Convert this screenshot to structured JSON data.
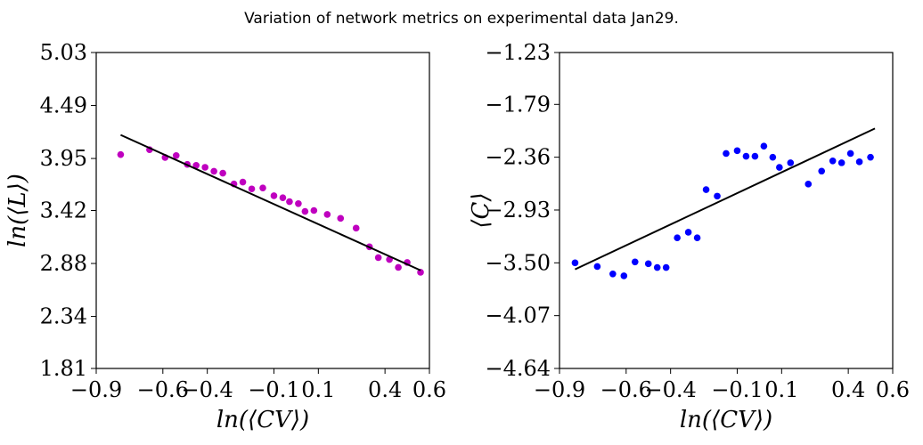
{
  "figure": {
    "suptitle": "Variation of network metrics on experimental data Jan29."
  },
  "chart_data": [
    {
      "type": "scatter",
      "xlabel": "ln(⟨CV⟩)",
      "ylabel": "ln(⟨L⟩)",
      "xlim": [
        -0.9,
        0.6
      ],
      "ylim": [
        1.81,
        5.03
      ],
      "xticks": [
        -0.9,
        -0.6,
        -0.4,
        -0.1,
        0.1,
        0.4,
        0.6
      ],
      "xtick_labels": [
        "−0.9",
        "−0.6",
        "−0.4",
        "−0.1",
        "0.1",
        "0.4",
        "0.6"
      ],
      "yticks": [
        1.81,
        2.34,
        2.88,
        3.42,
        3.95,
        4.49,
        5.03
      ],
      "ytick_labels": [
        "1.81",
        "2.34",
        "2.88",
        "3.42",
        "3.95",
        "4.49",
        "5.03"
      ],
      "grid": false,
      "marker_color": "#bf00bf",
      "fit_color": "#000000",
      "series": [
        {
          "x": [
            -0.79,
            -0.66,
            -0.59,
            -0.54,
            -0.49,
            -0.45,
            -0.41,
            -0.37,
            -0.33,
            -0.28,
            -0.24,
            -0.2,
            -0.15,
            -0.1,
            -0.06,
            -0.03,
            0.01,
            0.04,
            0.08,
            0.14,
            0.2,
            0.27,
            0.33,
            0.37,
            0.42,
            0.46,
            0.5,
            0.56
          ],
          "y": [
            3.99,
            4.04,
            3.96,
            3.98,
            3.89,
            3.88,
            3.86,
            3.82,
            3.8,
            3.69,
            3.71,
            3.64,
            3.65,
            3.57,
            3.55,
            3.51,
            3.49,
            3.41,
            3.42,
            3.38,
            3.34,
            3.24,
            3.05,
            2.94,
            2.92,
            2.84,
            2.89,
            2.79
          ]
        }
      ],
      "fit_line": {
        "x": [
          -0.79,
          0.56
        ],
        "y": [
          4.19,
          2.81
        ]
      }
    },
    {
      "type": "scatter",
      "xlabel": "ln(⟨CV⟩)",
      "ylabel": "⟨C⟩",
      "xlim": [
        -0.9,
        0.6
      ],
      "ylim": [
        -4.64,
        -1.23
      ],
      "xticks": [
        -0.9,
        -0.6,
        -0.4,
        -0.1,
        0.1,
        0.4,
        0.6
      ],
      "xtick_labels": [
        "−0.9",
        "−0.6",
        "−0.4",
        "−0.1",
        "0.1",
        "0.4",
        "0.6"
      ],
      "yticks": [
        -4.64,
        -4.07,
        -3.5,
        -2.93,
        -2.36,
        -1.79,
        -1.23
      ],
      "ytick_labels": [
        "−4.64",
        "−4.07",
        "−3.50",
        "−2.93",
        "−2.36",
        "−1.79",
        "−1.23"
      ],
      "grid": false,
      "marker_color": "#0000ff",
      "fit_color": "#000000",
      "series": [
        {
          "x": [
            -0.83,
            -0.73,
            -0.66,
            -0.61,
            -0.56,
            -0.5,
            -0.46,
            -0.42,
            -0.37,
            -0.32,
            -0.28,
            -0.24,
            -0.19,
            -0.15,
            -0.1,
            -0.06,
            -0.02,
            0.02,
            0.06,
            0.09,
            0.14,
            0.22,
            0.28,
            0.33,
            0.37,
            0.41,
            0.45,
            0.5
          ],
          "y": [
            -3.5,
            -3.54,
            -3.62,
            -3.64,
            -3.49,
            -3.51,
            -3.55,
            -3.55,
            -3.23,
            -3.17,
            -3.23,
            -2.71,
            -2.78,
            -2.32,
            -2.29,
            -2.35,
            -2.35,
            -2.24,
            -2.36,
            -2.47,
            -2.42,
            -2.65,
            -2.51,
            -2.4,
            -2.42,
            -2.32,
            -2.41,
            -2.36
          ]
        }
      ],
      "fit_line": {
        "x": [
          -0.83,
          0.52
        ],
        "y": [
          -3.57,
          -2.05
        ]
      }
    }
  ]
}
